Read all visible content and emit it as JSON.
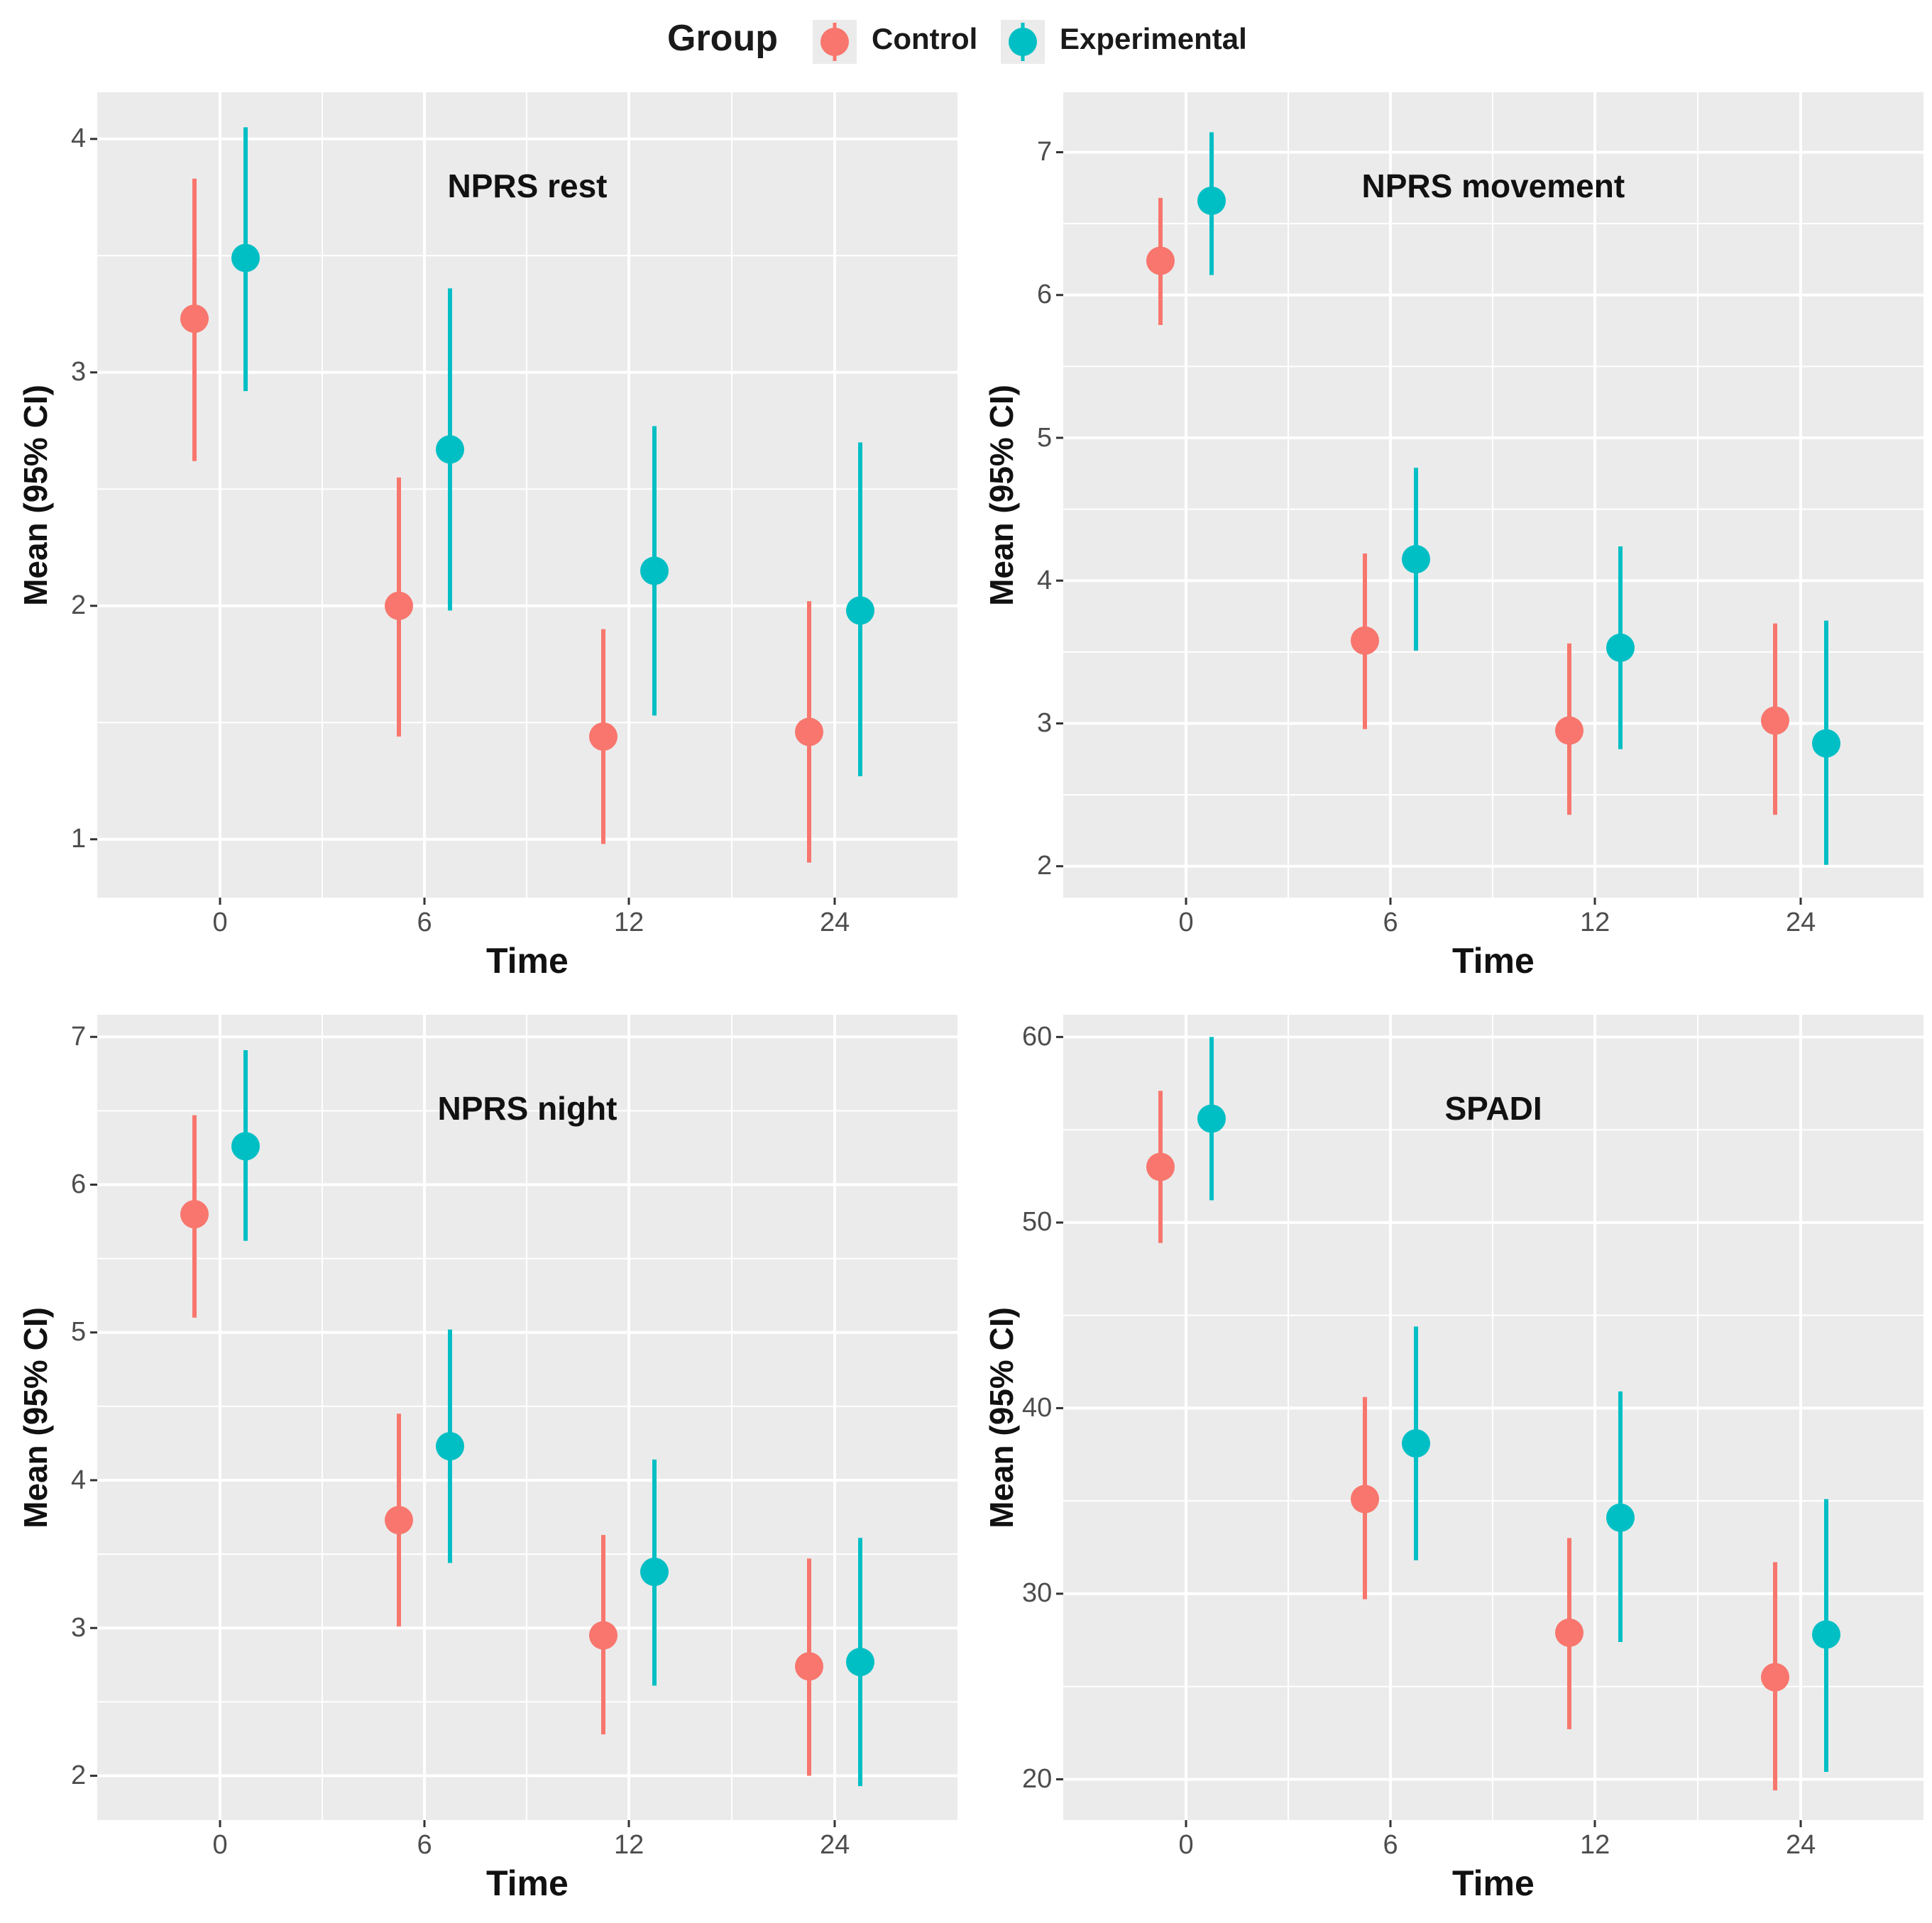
{
  "legend": {
    "title": "Group",
    "entries": [
      {
        "label": "Control",
        "color": "#F8766D"
      },
      {
        "label": "Experimental",
        "color": "#00BFC4"
      }
    ]
  },
  "colors": {
    "panel_bg": "#ebebeb",
    "grid": "#ffffff",
    "text": "#1a1a1a"
  },
  "chart_data": [
    {
      "type": "scatter",
      "title": "NPRS rest",
      "xlabel": "Time",
      "ylabel": "Mean (95% CI)",
      "categories": [
        "0",
        "6",
        "12",
        "24"
      ],
      "ylim": [
        0.75,
        4.2
      ],
      "yticks": [
        "1",
        "2",
        "3",
        "4"
      ],
      "ytick_values": [
        1,
        2,
        3,
        4
      ],
      "series": [
        {
          "name": "Control",
          "mean": [
            3.23,
            2.0,
            1.44,
            1.46
          ],
          "lower": [
            2.62,
            1.44,
            0.98,
            0.9
          ],
          "upper": [
            3.83,
            2.55,
            1.9,
            2.02
          ]
        },
        {
          "name": "Experimental",
          "mean": [
            3.49,
            2.67,
            2.15,
            1.98
          ],
          "lower": [
            2.92,
            1.98,
            1.53,
            1.27
          ],
          "upper": [
            4.05,
            3.36,
            2.77,
            2.7
          ]
        }
      ]
    },
    {
      "type": "scatter",
      "title": "NPRS movement",
      "xlabel": "Time",
      "ylabel": "Mean (95% CI)",
      "categories": [
        "0",
        "6",
        "12",
        "24"
      ],
      "ylim": [
        1.78,
        7.42
      ],
      "yticks": [
        "2",
        "3",
        "4",
        "5",
        "6",
        "7"
      ],
      "ytick_values": [
        2,
        3,
        4,
        5,
        6,
        7
      ],
      "series": [
        {
          "name": "Control",
          "mean": [
            6.24,
            3.58,
            2.95,
            3.02
          ],
          "lower": [
            5.79,
            2.96,
            2.36,
            2.36
          ],
          "upper": [
            6.68,
            4.19,
            3.56,
            3.7
          ]
        },
        {
          "name": "Experimental",
          "mean": [
            6.66,
            4.15,
            3.53,
            2.86
          ],
          "lower": [
            6.14,
            3.51,
            2.82,
            2.01
          ],
          "upper": [
            7.14,
            4.79,
            4.24,
            3.72
          ]
        }
      ]
    },
    {
      "type": "scatter",
      "title": "NPRS night",
      "xlabel": "Time",
      "ylabel": "Mean (95% CI)",
      "categories": [
        "0",
        "6",
        "12",
        "24"
      ],
      "ylim": [
        1.7,
        7.15
      ],
      "yticks": [
        "2",
        "3",
        "4",
        "5",
        "6",
        "7"
      ],
      "ytick_values": [
        2,
        3,
        4,
        5,
        6,
        7
      ],
      "series": [
        {
          "name": "Control",
          "mean": [
            5.8,
            3.73,
            2.95,
            2.74
          ],
          "lower": [
            5.1,
            3.01,
            2.28,
            2.0
          ],
          "upper": [
            6.47,
            4.45,
            3.63,
            3.47
          ]
        },
        {
          "name": "Experimental",
          "mean": [
            6.26,
            4.23,
            3.38,
            2.77
          ],
          "lower": [
            5.62,
            3.44,
            2.61,
            1.93
          ],
          "upper": [
            6.91,
            5.02,
            4.14,
            3.61
          ]
        }
      ]
    },
    {
      "type": "scatter",
      "title": "SPADI",
      "xlabel": "Time",
      "ylabel": "Mean (95% CI)",
      "categories": [
        "0",
        "6",
        "12",
        "24"
      ],
      "ylim": [
        17.8,
        61.2
      ],
      "yticks": [
        "20",
        "30",
        "40",
        "50",
        "60"
      ],
      "ytick_values": [
        20,
        30,
        40,
        50,
        60
      ],
      "series": [
        {
          "name": "Control",
          "mean": [
            53.0,
            35.1,
            27.9,
            25.5
          ],
          "lower": [
            48.9,
            29.7,
            22.7,
            19.4
          ],
          "upper": [
            57.1,
            40.6,
            33.0,
            31.7
          ]
        },
        {
          "name": "Experimental",
          "mean": [
            55.6,
            38.1,
            34.1,
            27.8
          ],
          "lower": [
            51.2,
            31.8,
            27.4,
            20.4
          ],
          "upper": [
            60.0,
            44.4,
            40.9,
            35.1
          ]
        }
      ]
    }
  ]
}
